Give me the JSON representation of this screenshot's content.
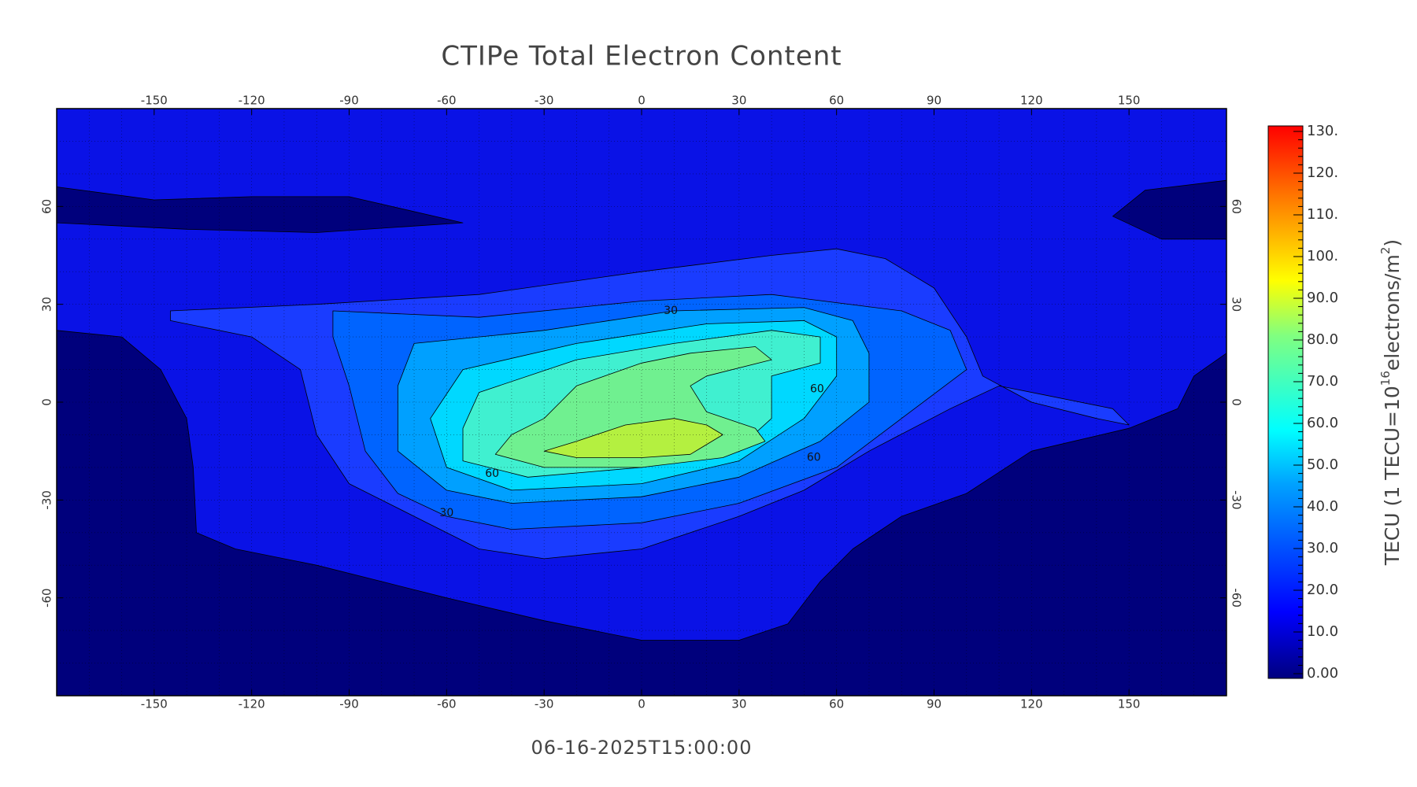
{
  "chart_data": {
    "type": "contour",
    "title": "CTIPe Total Electron Content",
    "timestamp": "06-16-2025T15:00:00",
    "xlim": [
      -180,
      180
    ],
    "ylim": [
      -90,
      90
    ],
    "xticks": [
      -150,
      -120,
      -90,
      -60,
      -30,
      0,
      30,
      60,
      90,
      120,
      150
    ],
    "yticks": [
      -60,
      -30,
      0,
      30,
      60
    ],
    "grid": true,
    "contour_labels": [
      30,
      60,
      60,
      60,
      30
    ],
    "colorbar": {
      "lim": [
        0,
        130
      ],
      "ticks": [
        {
          "value": 0,
          "label": "0.00"
        },
        {
          "value": 10,
          "label": "10.0"
        },
        {
          "value": 20,
          "label": "20.0"
        },
        {
          "value": 30,
          "label": "30.0"
        },
        {
          "value": 40,
          "label": "40.0"
        },
        {
          "value": 50,
          "label": "50.0"
        },
        {
          "value": 60,
          "label": "60.0"
        },
        {
          "value": 70,
          "label": "70.0"
        },
        {
          "value": 80,
          "label": "80.0"
        },
        {
          "value": 90,
          "label": "90.0"
        },
        {
          "value": 100,
          "label": "100."
        },
        {
          "value": 110,
          "label": "110."
        },
        {
          "value": 120,
          "label": "120."
        },
        {
          "value": 130,
          "label": "130."
        }
      ],
      "title": [
        "TECU (1 TECU=10",
        "16",
        "electrons/m",
        "2",
        ")"
      ]
    }
  }
}
